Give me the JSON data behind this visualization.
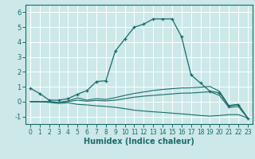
{
  "title": "",
  "xlabel": "Humidex (Indice chaleur)",
  "ylabel": "",
  "background_color": "#cce8e8",
  "grid_color": "#ffffff",
  "line_color": "#1a6b6b",
  "xlim": [
    -0.5,
    23.5
  ],
  "ylim": [
    -1.5,
    6.5
  ],
  "yticks": [
    -1,
    0,
    1,
    2,
    3,
    4,
    5,
    6
  ],
  "xticks": [
    0,
    1,
    2,
    3,
    4,
    5,
    6,
    7,
    8,
    9,
    10,
    11,
    12,
    13,
    14,
    15,
    16,
    17,
    18,
    19,
    20,
    21,
    22,
    23
  ],
  "series": [
    {
      "x": [
        0,
        1,
        2,
        3,
        4,
        5,
        6,
        7,
        8,
        9,
        10,
        11,
        12,
        13,
        14,
        15,
        16,
        17,
        18,
        19,
        20,
        21,
        22,
        23
      ],
      "y": [
        0.9,
        0.55,
        0.1,
        0.1,
        0.2,
        0.5,
        0.75,
        1.35,
        1.4,
        3.4,
        4.2,
        5.0,
        5.2,
        5.55,
        5.55,
        5.55,
        4.35,
        1.8,
        1.25,
        0.7,
        0.6,
        -0.3,
        -0.2,
        -1.1
      ],
      "marker": "+"
    },
    {
      "x": [
        0,
        1,
        2,
        3,
        4,
        5,
        6,
        7,
        8,
        9,
        10,
        11,
        12,
        13,
        14,
        15,
        16,
        17,
        18,
        19,
        20,
        21,
        22,
        23
      ],
      "y": [
        0.0,
        0.0,
        0.0,
        -0.05,
        0.05,
        0.25,
        0.1,
        0.2,
        0.15,
        0.27,
        0.42,
        0.55,
        0.65,
        0.75,
        0.82,
        0.87,
        0.92,
        0.93,
        0.97,
        1.02,
        0.7,
        -0.25,
        -0.18,
        -1.1
      ],
      "marker": null
    },
    {
      "x": [
        0,
        1,
        2,
        3,
        4,
        5,
        6,
        7,
        8,
        9,
        10,
        11,
        12,
        13,
        14,
        15,
        16,
        17,
        18,
        19,
        20,
        21,
        22,
        23
      ],
      "y": [
        0.0,
        0.0,
        0.0,
        -0.05,
        0.0,
        0.1,
        0.03,
        0.08,
        0.05,
        0.1,
        0.2,
        0.3,
        0.37,
        0.42,
        0.47,
        0.52,
        0.57,
        0.58,
        0.62,
        0.67,
        0.42,
        -0.38,
        -0.33,
        -1.1
      ],
      "marker": null
    },
    {
      "x": [
        0,
        1,
        2,
        3,
        4,
        5,
        6,
        7,
        8,
        9,
        10,
        11,
        12,
        13,
        14,
        15,
        16,
        17,
        18,
        19,
        20,
        21,
        22,
        23
      ],
      "y": [
        0.0,
        0.0,
        -0.05,
        -0.12,
        -0.07,
        -0.18,
        -0.22,
        -0.28,
        -0.32,
        -0.38,
        -0.47,
        -0.57,
        -0.63,
        -0.68,
        -0.72,
        -0.77,
        -0.82,
        -0.87,
        -0.93,
        -0.97,
        -0.93,
        -0.87,
        -0.87,
        -1.1
      ],
      "marker": null
    }
  ]
}
